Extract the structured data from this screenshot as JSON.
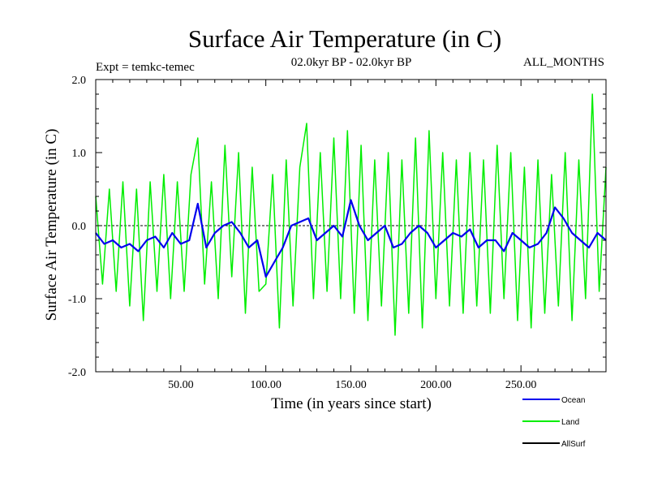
{
  "chart_data": {
    "type": "line",
    "title": "Surface Air Temperature (in C)",
    "subtitle_left": "Expt = temkc-temec",
    "subtitle_center": "02.0kyr BP - 02.0kyr BP",
    "subtitle_right": "ALL_MONTHS",
    "xlabel": "Time (in years since start)",
    "ylabel": "Surface Air Temperature (in C)",
    "xlim": [
      0,
      300
    ],
    "ylim": [
      -2.0,
      2.0
    ],
    "x_ticks": [
      50,
      100,
      150,
      200,
      250
    ],
    "x_tick_labels": [
      "50.00",
      "100.00",
      "150.00",
      "200.00",
      "250.00"
    ],
    "y_ticks": [
      -2,
      -1,
      0,
      1,
      2
    ],
    "y_tick_labels": [
      "-2.0",
      "-1.0",
      "0.0",
      "1.0",
      "2.0"
    ],
    "reference_line": 0,
    "series": [
      {
        "name": "Land",
        "color": "#00ee00",
        "x": [
          0,
          4,
          8,
          12,
          16,
          20,
          24,
          28,
          32,
          36,
          40,
          44,
          48,
          52,
          56,
          60,
          64,
          68,
          72,
          76,
          80,
          84,
          88,
          92,
          96,
          100,
          104,
          108,
          112,
          116,
          120,
          124,
          128,
          132,
          136,
          140,
          144,
          148,
          152,
          156,
          160,
          164,
          168,
          172,
          176,
          180,
          184,
          188,
          192,
          196,
          200,
          204,
          208,
          212,
          216,
          220,
          224,
          228,
          232,
          236,
          240,
          244,
          248,
          252,
          256,
          260,
          264,
          268,
          272,
          276,
          280,
          284,
          288,
          292,
          296,
          300
        ],
        "values": [
          0.4,
          -0.8,
          0.5,
          -0.9,
          0.6,
          -1.1,
          0.5,
          -1.3,
          0.6,
          -0.9,
          0.7,
          -1.0,
          0.6,
          -0.9,
          0.7,
          1.2,
          -0.8,
          0.6,
          -1.0,
          1.1,
          -0.7,
          1.0,
          -1.2,
          0.8,
          -0.9,
          -0.8,
          0.7,
          -1.4,
          0.9,
          -1.1,
          0.8,
          1.4,
          -1.0,
          1.0,
          -0.9,
          1.2,
          -1.0,
          1.3,
          -1.2,
          1.1,
          -1.3,
          0.9,
          -1.1,
          1.0,
          -1.5,
          0.9,
          -1.2,
          1.2,
          -1.4,
          1.3,
          -1.0,
          1.0,
          -1.1,
          0.9,
          -1.2,
          1.0,
          -1.1,
          0.9,
          -1.2,
          1.1,
          -1.0,
          1.0,
          -1.3,
          0.8,
          -1.4,
          0.9,
          -1.2,
          0.7,
          -1.1,
          1.0,
          -1.3,
          0.9,
          -1.0,
          1.8,
          -0.9,
          0.8
        ]
      },
      {
        "name": "Ocean",
        "color": "#0000ee",
        "x": [
          0,
          5,
          10,
          15,
          20,
          25,
          30,
          35,
          40,
          45,
          50,
          55,
          60,
          65,
          70,
          75,
          80,
          85,
          90,
          95,
          100,
          105,
          110,
          115,
          120,
          125,
          130,
          135,
          140,
          145,
          150,
          155,
          160,
          165,
          170,
          175,
          180,
          185,
          190,
          195,
          200,
          205,
          210,
          215,
          220,
          225,
          230,
          235,
          240,
          245,
          250,
          255,
          260,
          265,
          270,
          275,
          280,
          285,
          290,
          295,
          300
        ],
        "values": [
          -0.1,
          -0.25,
          -0.2,
          -0.3,
          -0.25,
          -0.35,
          -0.2,
          -0.15,
          -0.3,
          -0.1,
          -0.25,
          -0.2,
          0.3,
          -0.3,
          -0.1,
          0.0,
          0.05,
          -0.1,
          -0.3,
          -0.2,
          -0.7,
          -0.5,
          -0.3,
          0.0,
          0.05,
          0.1,
          -0.2,
          -0.1,
          0.0,
          -0.15,
          0.35,
          0.0,
          -0.2,
          -0.1,
          0.0,
          -0.3,
          -0.25,
          -0.1,
          0.0,
          -0.1,
          -0.3,
          -0.2,
          -0.1,
          -0.15,
          -0.05,
          -0.3,
          -0.2,
          -0.2,
          -0.35,
          -0.1,
          -0.2,
          -0.3,
          -0.25,
          -0.1,
          0.25,
          0.1,
          -0.1,
          -0.2,
          -0.3,
          -0.1,
          -0.2
        ]
      },
      {
        "name": "AllSurf",
        "color": "#000000",
        "x": [],
        "values": []
      }
    ],
    "legend_position": "bottom-right"
  }
}
